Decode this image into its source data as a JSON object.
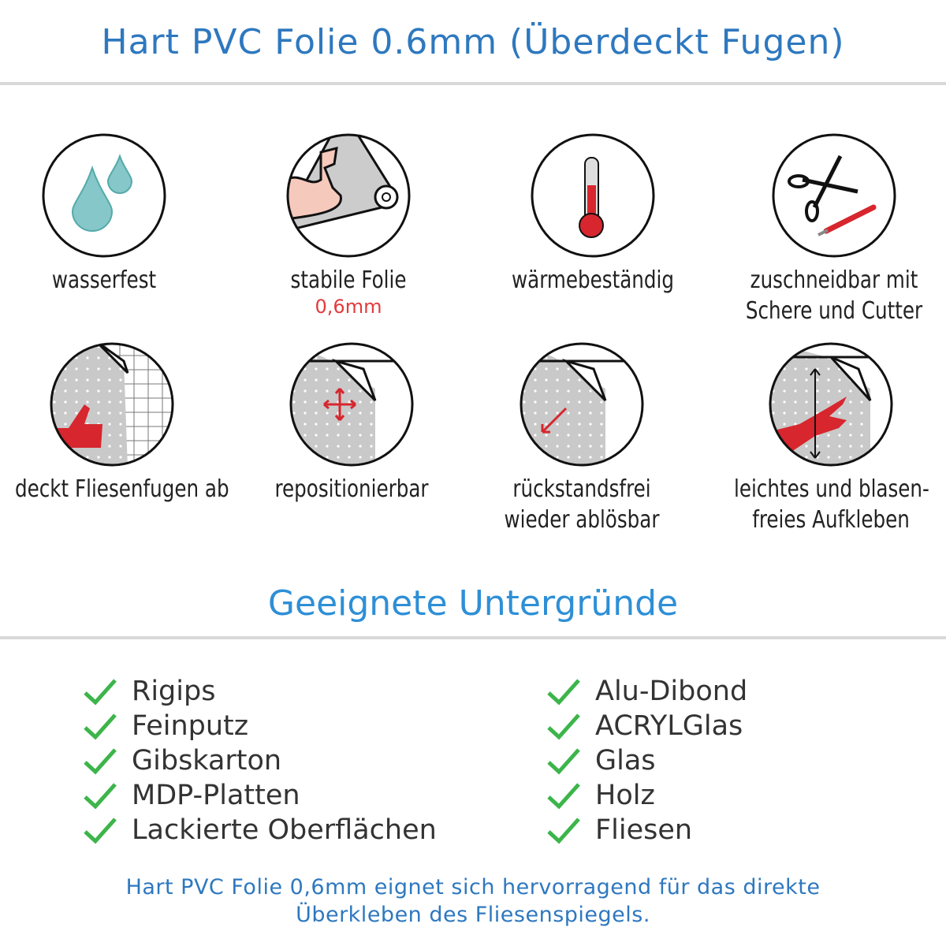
{
  "title": "Hart PVC Folie 0.6mm (Überdeckt Fugen)",
  "features": [
    {
      "icon": "water-drops-icon",
      "label": "wasserfest"
    },
    {
      "icon": "flexed-arm-roll-icon",
      "label": "stabile Folie",
      "sub": "0,6mm"
    },
    {
      "icon": "thermometer-icon",
      "label": "wärmebeständig"
    },
    {
      "icon": "scissors-cutter-icon",
      "label": "zuschneidbar mit",
      "label2": "Schere und Cutter"
    },
    {
      "icon": "thumbs-up-tile-icon",
      "label": "deckt Fliesenfugen ab"
    },
    {
      "icon": "move-arrows-icon",
      "label": "repositionierbar"
    },
    {
      "icon": "peel-arrow-icon",
      "label": "rückstandsfrei",
      "label2": "wieder ablösbar"
    },
    {
      "icon": "hand-smooth-icon",
      "label": "leichtes und blasen-",
      "label2": "freies Aufkleben"
    }
  ],
  "section_title": "Geeignete Untergründe",
  "surfaces_left": [
    "Rigips",
    "Feinputz",
    "Gibskarton",
    "MDP-Platten",
    "Lackierte Oberflächen"
  ],
  "surfaces_right": [
    "Alu-Dibond",
    "ACRYLGlas",
    "Glas",
    "Holz",
    "Fliesen"
  ],
  "footer": {
    "line1": "Hart PVC Folie 0,6mm eignet sich hervorragend für das direkte",
    "line2": "Überkleben des Fliesenspiegels."
  },
  "colors": {
    "title": "#2e78bf",
    "section": "#2e8fd6",
    "check": "#3cb54a",
    "accent_red": "#d7262e"
  }
}
